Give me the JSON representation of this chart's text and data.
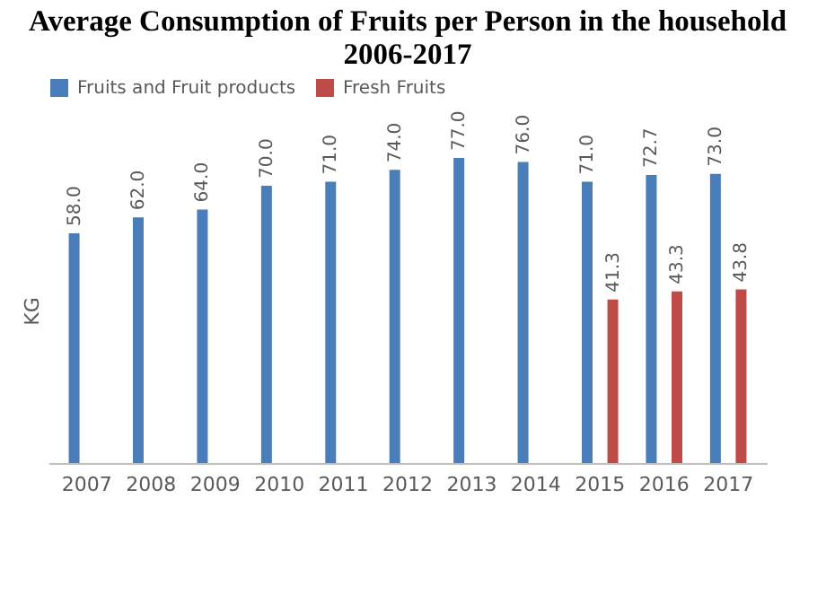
{
  "chart_data": {
    "type": "bar",
    "title": "Average Consumption of Fruits per Person in the household\n2006-2017",
    "ylabel": "KG",
    "categories": [
      "2007",
      "2008",
      "2009",
      "2010",
      "2011",
      "2012",
      "2013",
      "2014",
      "2015",
      "2016",
      "2017"
    ],
    "series": [
      {
        "name": "Fruits and Fruit products",
        "color": "#4a7ebb",
        "values": [
          58.0,
          62.0,
          64.0,
          70.0,
          71.0,
          74.0,
          77.0,
          76.0,
          71.0,
          72.7,
          73.0
        ],
        "value_labels": [
          "58.0",
          "62.0",
          "64.0",
          "70.0",
          "71.0",
          "74.0",
          "77.0",
          "76.0",
          "71.0",
          "72.7",
          "73.0"
        ]
      },
      {
        "name": "Fresh Fruits",
        "color": "#be4b48",
        "values": [
          null,
          null,
          null,
          null,
          null,
          null,
          null,
          null,
          41.3,
          43.3,
          43.8
        ],
        "value_labels": [
          null,
          null,
          null,
          null,
          null,
          null,
          null,
          null,
          "41.3",
          "43.3",
          "43.8"
        ]
      }
    ],
    "tick_labels": "x",
    "legend": "top",
    "grid": false
  }
}
